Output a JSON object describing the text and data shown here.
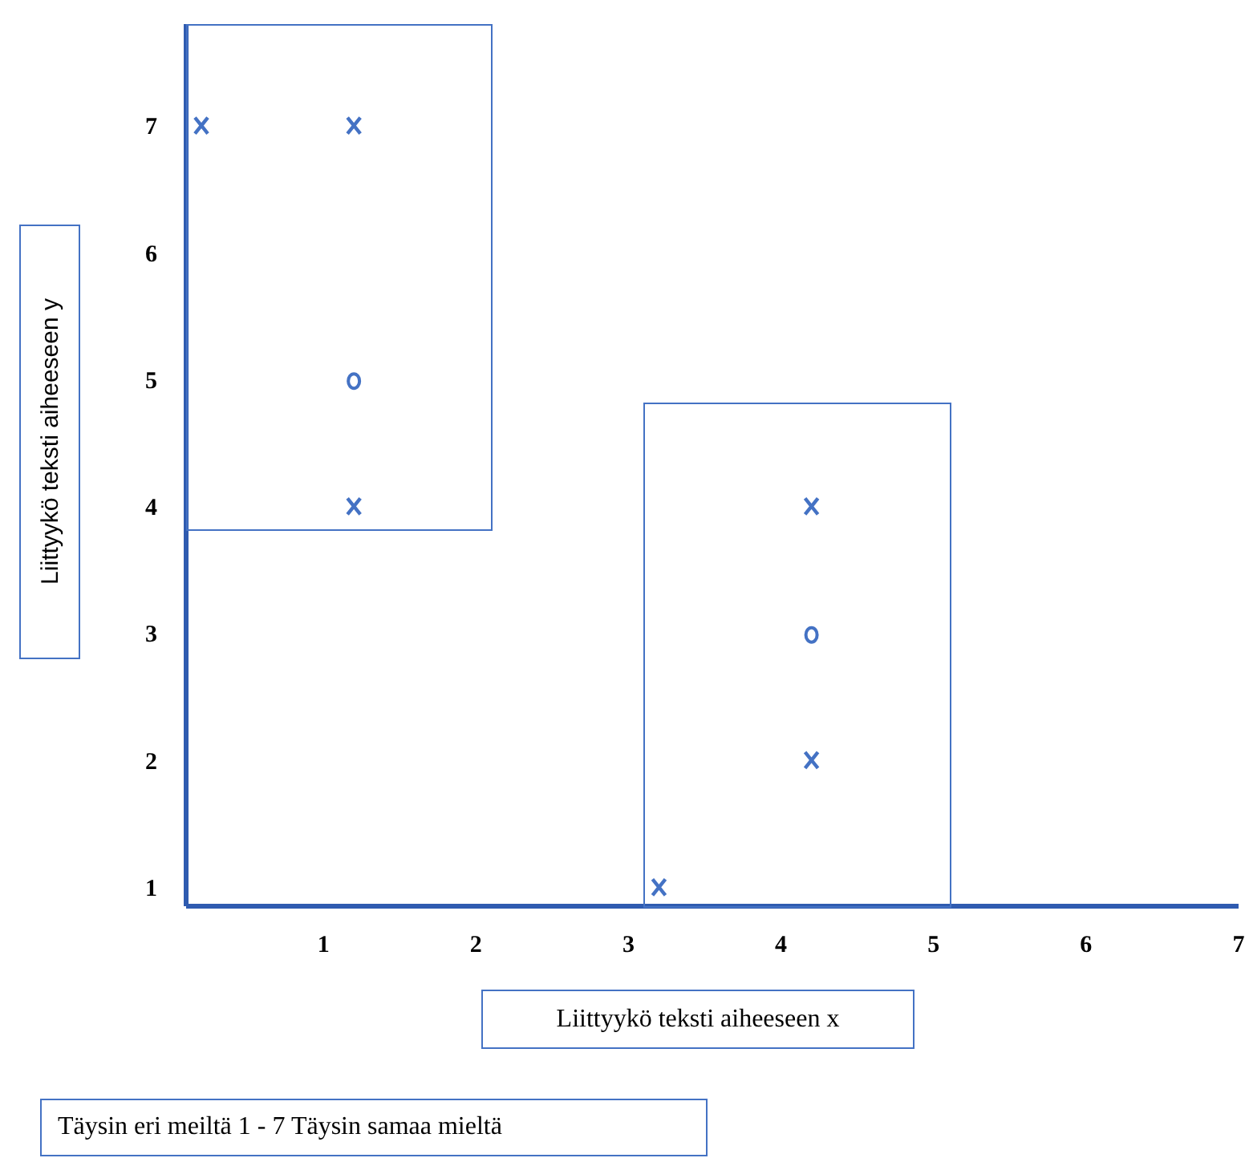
{
  "chart_data": {
    "type": "scatter",
    "xlabel": "Liittyykö teksti aiheeseen x",
    "ylabel": "Liittyykö teksti aiheeseen y",
    "annotations": [
      "Täysin eri meiltä 1 - 7 Täysin samaa mieltä"
    ],
    "xlim": [
      0.1,
      7
    ],
    "xticks": [
      1,
      2,
      3,
      4,
      5,
      6,
      7
    ],
    "ylim": [
      0.85,
      7.8
    ],
    "yticks": [
      1,
      2,
      3,
      4,
      5,
      6,
      7
    ],
    "series": [
      {
        "type": "scatter",
        "marker": "cross",
        "color": "#4472c4",
        "x": [
          0.2,
          1.2,
          1.2,
          4.2,
          4.2,
          3.2
        ],
        "values": [
          7,
          7,
          4,
          4,
          2,
          1
        ]
      },
      {
        "type": "scatter",
        "marker": "circle",
        "color": "#4472c4",
        "x": [
          1.2,
          4.2
        ],
        "values": [
          5,
          3
        ]
      }
    ]
  }
}
